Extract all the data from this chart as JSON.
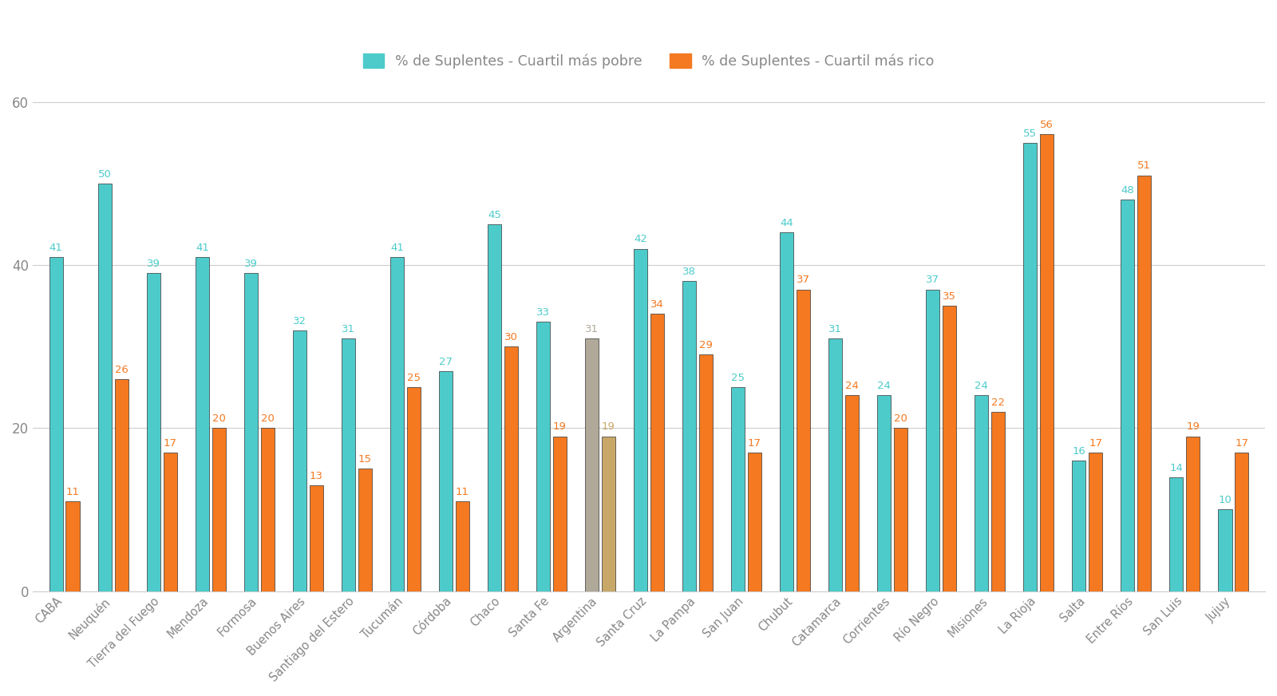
{
  "provinces": [
    "CABA",
    "Neuquén",
    "Tierra del Fuego",
    "Mendoza",
    "Formosa",
    "Buenos Aires",
    "Santiago del Estero",
    "Tucumán",
    "Córdoba",
    "Chaco",
    "Santa Fe",
    "Argentina",
    "Santa Cruz",
    "La Pampa",
    "San Juan",
    "Chubut",
    "Catamarca",
    "Corrientes",
    "Río Negro",
    "Misiones",
    "La Rioja",
    "Salta",
    "Entre Ríos",
    "San Luis",
    "Jujuy"
  ],
  "poor": [
    41,
    50,
    39,
    41,
    39,
    32,
    31,
    41,
    27,
    45,
    33,
    31,
    42,
    38,
    25,
    44,
    31,
    24,
    37,
    24,
    55,
    16,
    48,
    14,
    10
  ],
  "rich": [
    11,
    26,
    17,
    20,
    20,
    13,
    15,
    25,
    11,
    30,
    19,
    19,
    34,
    29,
    17,
    37,
    24,
    20,
    35,
    22,
    56,
    17,
    51,
    19,
    17
  ],
  "argentina_index": 11,
  "color_poor": "#4DCBCB",
  "color_rich": "#F47920",
  "color_argentina_poor": "#B0A898",
  "color_argentina_rich": "#C8A868",
  "background": "#FFFFFF",
  "grid_color": "#CCCCCC",
  "text_color": "#888888",
  "label_color_poor": "#4DCBCB",
  "label_color_rich": "#F47920",
  "ylim": [
    0,
    63
  ],
  "yticks": [
    0,
    20,
    40,
    60
  ],
  "legend_poor": "% de Suplentes - Cuartil más pobre",
  "legend_rich": "% de Suplentes - Cuartil más rico"
}
